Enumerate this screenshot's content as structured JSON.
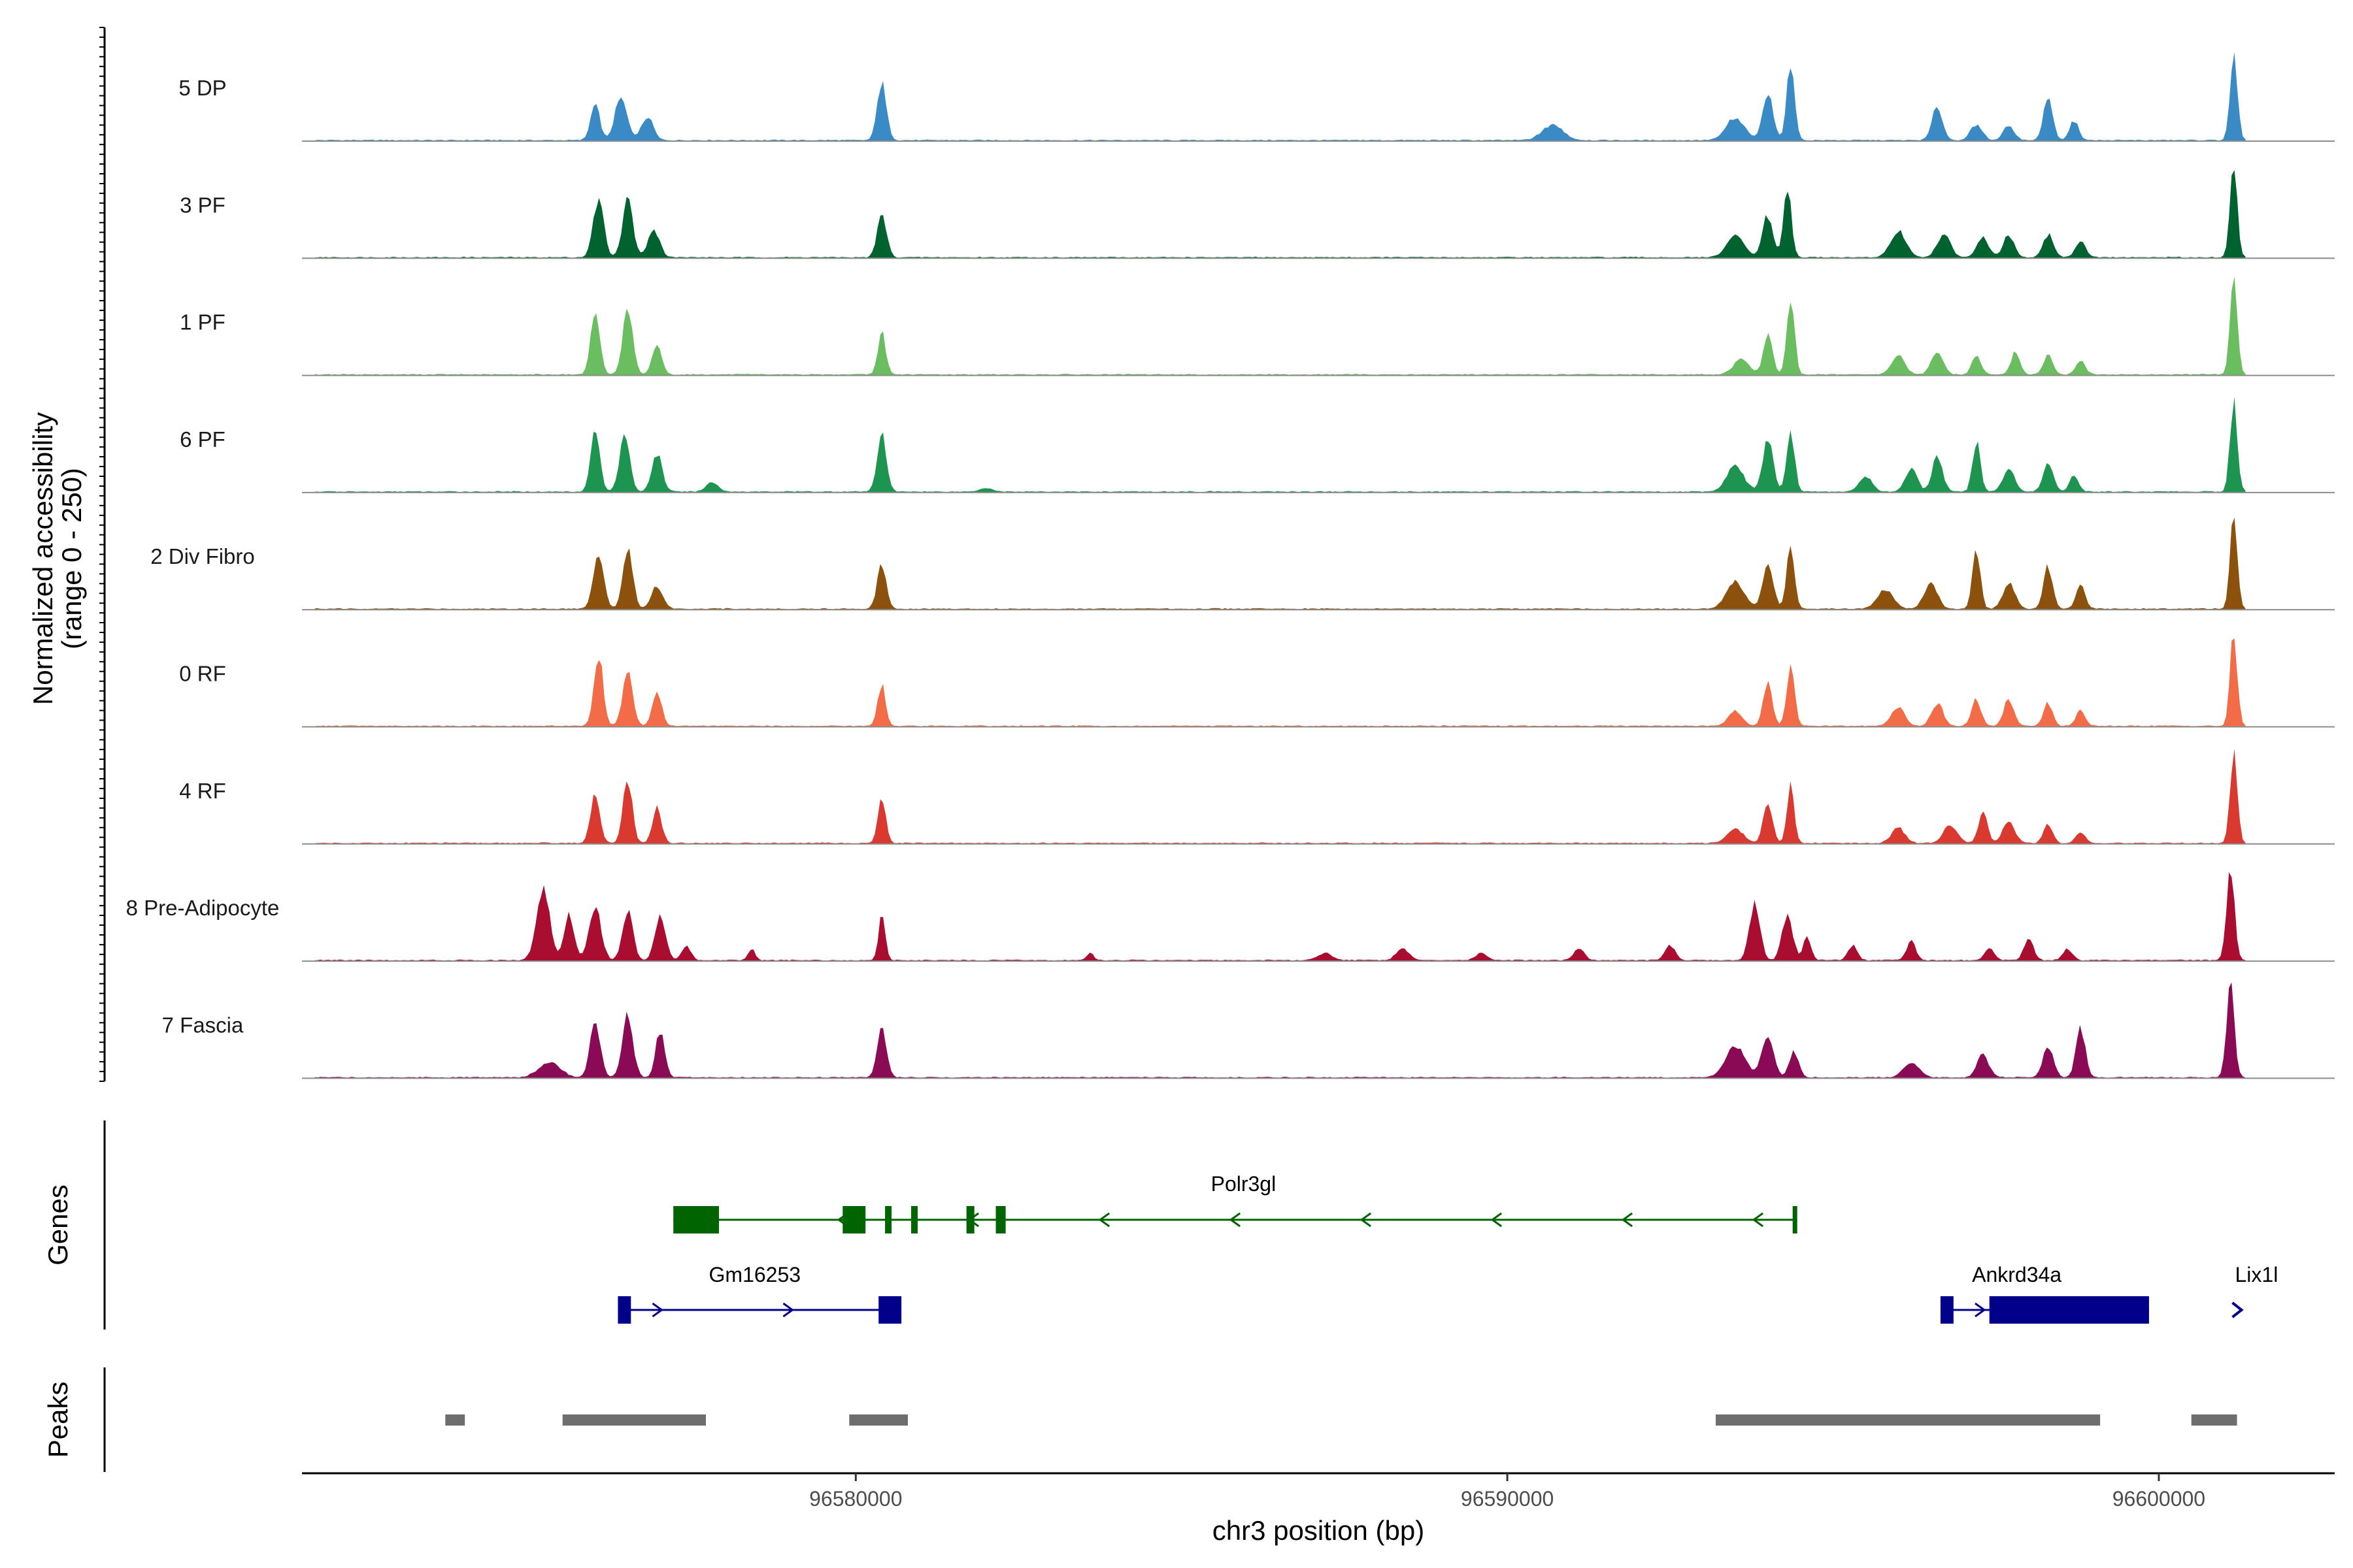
{
  "chart_data": {
    "type": "area",
    "title": "",
    "xlabel": "chr3 position (bp)",
    "ylabel": "Normalized accessibility",
    "ylabel_range": "(range 0 - 250)",
    "ylim": [
      0,
      250
    ],
    "xlim": [
      96571500,
      96602700
    ],
    "x_ticks": [
      {
        "value": 96580000,
        "label": "96580000"
      },
      {
        "value": 96590000,
        "label": "96590000"
      },
      {
        "value": 96600000,
        "label": "96600000"
      }
    ],
    "panel_labels": {
      "genes": "Genes",
      "peaks": "Peaks"
    },
    "series": [
      {
        "name": "5 DP",
        "color": "#3a8ac6",
        "peaks": [
          [
            96576000,
            95,
            70
          ],
          [
            96576400,
            120,
            90
          ],
          [
            96576800,
            60,
            90
          ],
          [
            96580400,
            150,
            70
          ],
          [
            96590700,
            40,
            160
          ],
          [
            96593500,
            60,
            140
          ],
          [
            96594000,
            120,
            80
          ],
          [
            96594350,
            200,
            60
          ],
          [
            96596600,
            90,
            80
          ],
          [
            96597200,
            40,
            90
          ],
          [
            96597700,
            40,
            80
          ],
          [
            96598300,
            120,
            70
          ],
          [
            96598700,
            50,
            70
          ],
          [
            96601150,
            240,
            55
          ]
        ]
      },
      {
        "name": "3 PF",
        "color": "#00632f",
        "peaks": [
          [
            96576050,
            150,
            80
          ],
          [
            96576500,
            150,
            80
          ],
          [
            96576900,
            70,
            90
          ],
          [
            96580400,
            120,
            70
          ],
          [
            96593500,
            60,
            130
          ],
          [
            96594000,
            110,
            80
          ],
          [
            96594300,
            180,
            60
          ],
          [
            96596000,
            70,
            120
          ],
          [
            96596700,
            60,
            100
          ],
          [
            96597300,
            50,
            90
          ],
          [
            96597700,
            60,
            80
          ],
          [
            96598300,
            60,
            80
          ],
          [
            96598800,
            40,
            80
          ],
          [
            96601150,
            240,
            55
          ]
        ]
      },
      {
        "name": "1 PF",
        "color": "#6abe5f",
        "peaks": [
          [
            96576000,
            160,
            70
          ],
          [
            96576500,
            180,
            75
          ],
          [
            96576950,
            80,
            70
          ],
          [
            96580400,
            110,
            60
          ],
          [
            96593600,
            40,
            120
          ],
          [
            96594000,
            100,
            70
          ],
          [
            96594350,
            190,
            60
          ],
          [
            96596000,
            50,
            100
          ],
          [
            96596600,
            60,
            90
          ],
          [
            96597200,
            50,
            70
          ],
          [
            96597800,
            60,
            70
          ],
          [
            96598300,
            50,
            70
          ],
          [
            96598800,
            40,
            70
          ],
          [
            96601150,
            240,
            55
          ]
        ]
      },
      {
        "name": "6 PF",
        "color": "#1d9551",
        "peaks": [
          [
            96576000,
            160,
            70
          ],
          [
            96576450,
            140,
            80
          ],
          [
            96576950,
            100,
            80
          ],
          [
            96577800,
            25,
            90
          ],
          [
            96580400,
            150,
            70
          ],
          [
            96582000,
            10,
            100
          ],
          [
            96593500,
            70,
            130
          ],
          [
            96594000,
            140,
            80
          ],
          [
            96594350,
            160,
            60
          ],
          [
            96595500,
            40,
            100
          ],
          [
            96596200,
            60,
            90
          ],
          [
            96596600,
            90,
            80
          ],
          [
            96597200,
            130,
            60
          ],
          [
            96597700,
            60,
            90
          ],
          [
            96598300,
            70,
            80
          ],
          [
            96598700,
            40,
            70
          ],
          [
            96601150,
            240,
            55
          ]
        ]
      },
      {
        "name": "2 Div Fibro",
        "color": "#8b510d",
        "peaks": [
          [
            96576050,
            140,
            80
          ],
          [
            96576500,
            160,
            75
          ],
          [
            96576950,
            60,
            90
          ],
          [
            96580400,
            120,
            70
          ],
          [
            96593500,
            70,
            140
          ],
          [
            96594000,
            120,
            80
          ],
          [
            96594350,
            170,
            60
          ],
          [
            96595800,
            50,
            120
          ],
          [
            96596500,
            70,
            100
          ],
          [
            96597200,
            150,
            60
          ],
          [
            96597700,
            70,
            90
          ],
          [
            96598300,
            110,
            70
          ],
          [
            96598800,
            60,
            70
          ],
          [
            96601150,
            240,
            55
          ]
        ]
      },
      {
        "name": "0 RF",
        "color": "#f26c47",
        "peaks": [
          [
            96576050,
            190,
            70
          ],
          [
            96576500,
            150,
            75
          ],
          [
            96576950,
            90,
            70
          ],
          [
            96580400,
            110,
            60
          ],
          [
            96593500,
            40,
            100
          ],
          [
            96594000,
            110,
            70
          ],
          [
            96594350,
            160,
            60
          ],
          [
            96596000,
            50,
            100
          ],
          [
            96596600,
            60,
            90
          ],
          [
            96597200,
            70,
            70
          ],
          [
            96597700,
            70,
            80
          ],
          [
            96598300,
            60,
            70
          ],
          [
            96598800,
            40,
            70
          ],
          [
            96601150,
            240,
            55
          ]
        ]
      },
      {
        "name": "4 RF",
        "color": "#d9392f",
        "peaks": [
          [
            96576000,
            130,
            70
          ],
          [
            96576500,
            170,
            70
          ],
          [
            96576950,
            90,
            70
          ],
          [
            96580400,
            120,
            60
          ],
          [
            96593500,
            40,
            120
          ],
          [
            96594000,
            110,
            70
          ],
          [
            96594350,
            150,
            55
          ],
          [
            96596000,
            40,
            100
          ],
          [
            96596800,
            50,
            100
          ],
          [
            96597300,
            80,
            70
          ],
          [
            96597700,
            60,
            90
          ],
          [
            96598300,
            50,
            70
          ],
          [
            96598800,
            30,
            70
          ],
          [
            96601150,
            240,
            55
          ]
        ]
      },
      {
        "name": "8 Pre-Adipocyte",
        "color": "#a90d2f",
        "peaks": [
          [
            96575200,
            190,
            100
          ],
          [
            96575600,
            120,
            80
          ],
          [
            96576000,
            140,
            90
          ],
          [
            96576500,
            130,
            80
          ],
          [
            96577000,
            120,
            80
          ],
          [
            96577400,
            40,
            70
          ],
          [
            96578400,
            30,
            50
          ],
          [
            96580400,
            120,
            50
          ],
          [
            96583600,
            20,
            50
          ],
          [
            96587200,
            20,
            100
          ],
          [
            96588400,
            30,
            100
          ],
          [
            96589600,
            20,
            80
          ],
          [
            96591100,
            30,
            80
          ],
          [
            96592500,
            40,
            80
          ],
          [
            96593800,
            150,
            80
          ],
          [
            96594300,
            120,
            80
          ],
          [
            96594600,
            60,
            60
          ],
          [
            96595300,
            40,
            70
          ],
          [
            96596200,
            50,
            70
          ],
          [
            96597400,
            30,
            70
          ],
          [
            96598000,
            60,
            70
          ],
          [
            96598600,
            30,
            70
          ],
          [
            96601100,
            240,
            60
          ]
        ]
      },
      {
        "name": "7 Fascia",
        "color": "#8a0a56",
        "peaks": [
          [
            96575300,
            40,
            160
          ],
          [
            96576000,
            140,
            80
          ],
          [
            96576500,
            160,
            80
          ],
          [
            96577000,
            120,
            70
          ],
          [
            96580400,
            130,
            70
          ],
          [
            96593500,
            80,
            150
          ],
          [
            96594000,
            110,
            90
          ],
          [
            96594400,
            70,
            70
          ],
          [
            96596200,
            40,
            120
          ],
          [
            96597300,
            60,
            90
          ],
          [
            96598300,
            80,
            80
          ],
          [
            96598800,
            130,
            70
          ],
          [
            96601100,
            240,
            60
          ]
        ]
      }
    ],
    "genes": [
      {
        "name": "Polr3gl",
        "strand": "-",
        "color": "#006400",
        "row": 1,
        "start": 96577200,
        "end": 96594450,
        "label_pos": 96585950,
        "exons": [
          [
            96577200,
            96577900
          ],
          [
            96579800,
            96580150
          ],
          [
            96580450,
            96580550
          ],
          [
            96580850,
            96580950
          ],
          [
            96581700,
            96581820
          ],
          [
            96582150,
            96582300
          ],
          [
            96594380,
            96594450
          ]
        ]
      },
      {
        "name": "Gm16253",
        "strand": "+",
        "color": "#00008b",
        "row": 2,
        "start": 96576350,
        "end": 96580700,
        "label_pos": 96578450,
        "exons": [
          [
            96576350,
            96576550
          ],
          [
            96580350,
            96580700
          ]
        ]
      },
      {
        "name": "Ankrd34a",
        "strand": "+",
        "color": "#00008b",
        "row": 2,
        "start": 96596650,
        "end": 96599850,
        "label_pos": 96597820,
        "exons": [
          [
            96596650,
            96596850
          ],
          [
            96597400,
            96599850
          ]
        ]
      },
      {
        "name": "Lix1l",
        "strand": "+",
        "color": "#00008b",
        "row": 2,
        "start": 96601100,
        "end": 96601250,
        "label_pos": 96601500,
        "exons": []
      }
    ],
    "peak_regions": [
      [
        96573700,
        96574000
      ],
      [
        96575500,
        96577700
      ],
      [
        96579900,
        96580800
      ],
      [
        96593200,
        96599100
      ],
      [
        96600500,
        96601200
      ]
    ]
  }
}
